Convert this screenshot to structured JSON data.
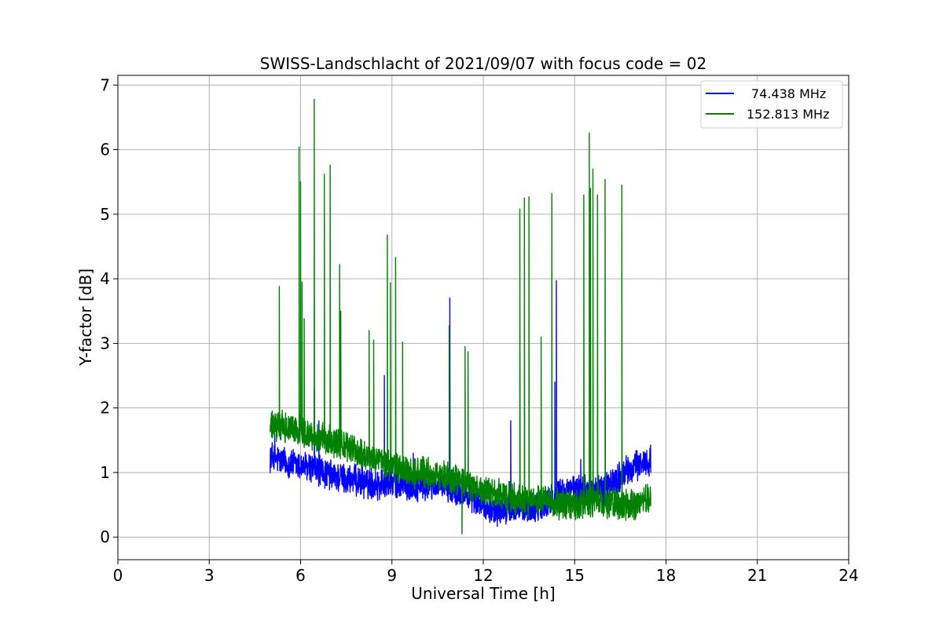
{
  "chart_data": {
    "type": "line",
    "title": "SWISS-Landschlacht of 2021/09/07 with focus code = 02",
    "xlabel": "Universal Time [h]",
    "ylabel": "Y-factor [dB]",
    "xlim": [
      0,
      24
    ],
    "ylim": [
      -0.35,
      7.15
    ],
    "xticks": [
      0,
      3,
      6,
      9,
      12,
      15,
      18,
      21,
      24
    ],
    "yticks": [
      0,
      1,
      2,
      3,
      4,
      5,
      6,
      7
    ],
    "grid": true,
    "legend_position": "top-right",
    "series": [
      {
        "name": "74.438 MHz",
        "color": "#0000ff",
        "base": [
          [
            5.0,
            1.25
          ],
          [
            5.5,
            1.15
          ],
          [
            6.0,
            1.1
          ],
          [
            6.5,
            1.05
          ],
          [
            7.0,
            0.95
          ],
          [
            7.5,
            0.9
          ],
          [
            8.0,
            0.85
          ],
          [
            8.5,
            0.82
          ],
          [
            9.0,
            0.85
          ],
          [
            9.5,
            0.8
          ],
          [
            10.0,
            0.8
          ],
          [
            10.5,
            0.8
          ],
          [
            11.0,
            0.75
          ],
          [
            11.5,
            0.65
          ],
          [
            12.0,
            0.5
          ],
          [
            12.5,
            0.4
          ],
          [
            13.0,
            0.45
          ],
          [
            13.5,
            0.45
          ],
          [
            14.0,
            0.5
          ],
          [
            14.5,
            0.65
          ],
          [
            15.0,
            0.75
          ],
          [
            15.5,
            0.7
          ],
          [
            16.0,
            0.75
          ],
          [
            16.5,
            0.95
          ],
          [
            17.0,
            1.1
          ],
          [
            17.5,
            1.2
          ]
        ],
        "spikes": [
          [
            5.15,
            1.6
          ],
          [
            6.45,
            2.3
          ],
          [
            6.6,
            1.8
          ],
          [
            8.75,
            2.5
          ],
          [
            9.7,
            1.3
          ],
          [
            10.9,
            3.7
          ],
          [
            12.9,
            1.8
          ],
          [
            14.4,
            3.97
          ],
          [
            14.35,
            2.4
          ],
          [
            15.5,
            1.7
          ],
          [
            15.2,
            1.2
          ]
        ]
      },
      {
        "name": "152.813 MHz",
        "color": "#008000",
        "base": [
          [
            5.0,
            1.7
          ],
          [
            5.5,
            1.7
          ],
          [
            6.0,
            1.65
          ],
          [
            6.5,
            1.55
          ],
          [
            7.0,
            1.5
          ],
          [
            7.5,
            1.4
          ],
          [
            8.0,
            1.3
          ],
          [
            8.5,
            1.2
          ],
          [
            9.0,
            1.1
          ],
          [
            9.5,
            1.0
          ],
          [
            10.0,
            1.0
          ],
          [
            10.5,
            0.95
          ],
          [
            11.0,
            0.9
          ],
          [
            11.5,
            0.8
          ],
          [
            12.0,
            0.7
          ],
          [
            12.5,
            0.65
          ],
          [
            13.0,
            0.6
          ],
          [
            13.5,
            0.55
          ],
          [
            14.0,
            0.55
          ],
          [
            14.5,
            0.5
          ],
          [
            15.0,
            0.5
          ],
          [
            15.5,
            0.55
          ],
          [
            16.0,
            0.55
          ],
          [
            16.5,
            0.5
          ],
          [
            17.0,
            0.5
          ],
          [
            17.5,
            0.6
          ]
        ],
        "spikes": [
          [
            5.3,
            3.88
          ],
          [
            5.95,
            6.04
          ],
          [
            6.0,
            5.5
          ],
          [
            6.05,
            3.95
          ],
          [
            6.12,
            3.38
          ],
          [
            6.45,
            6.78
          ],
          [
            6.78,
            5.62
          ],
          [
            6.97,
            5.76
          ],
          [
            7.28,
            4.22
          ],
          [
            7.32,
            3.5
          ],
          [
            8.25,
            3.2
          ],
          [
            8.4,
            3.05
          ],
          [
            8.85,
            4.68
          ],
          [
            8.95,
            3.94
          ],
          [
            9.12,
            4.33
          ],
          [
            9.35,
            3.02
          ],
          [
            10.88,
            3.27
          ],
          [
            11.3,
            0.05
          ],
          [
            11.4,
            2.95
          ],
          [
            11.5,
            2.87
          ],
          [
            13.2,
            5.08
          ],
          [
            13.35,
            5.25
          ],
          [
            13.5,
            5.27
          ],
          [
            13.9,
            3.1
          ],
          [
            14.25,
            5.32
          ],
          [
            15.3,
            5.3
          ],
          [
            15.48,
            6.26
          ],
          [
            15.52,
            5.4
          ],
          [
            15.6,
            5.7
          ],
          [
            15.75,
            5.3
          ],
          [
            16.0,
            5.54
          ],
          [
            16.55,
            5.45
          ]
        ]
      }
    ]
  }
}
